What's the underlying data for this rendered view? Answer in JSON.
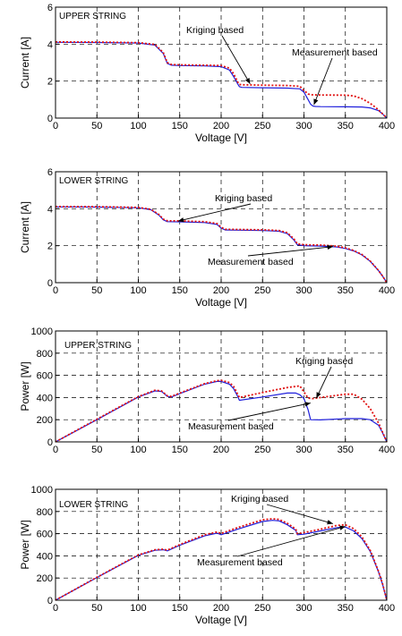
{
  "colors": {
    "measurement": "#1f1fdc",
    "kriging": "#e01010",
    "axis": "#000000",
    "grid": "#000000"
  },
  "chart_data": [
    {
      "type": "line",
      "id": "upper-current",
      "string_label": "UPPER STRING",
      "xlabel": "Voltage [V]",
      "ylabel": "Current [A]",
      "xlim": [
        0,
        400
      ],
      "ylim": [
        0,
        6
      ],
      "xticks": [
        0,
        50,
        100,
        150,
        200,
        250,
        300,
        350,
        400
      ],
      "yticks": [
        0,
        2,
        4,
        6
      ],
      "grid": true,
      "annotations": [
        {
          "text": "Kriging based",
          "series": "kriging",
          "point": [
            235,
            1.85
          ]
        },
        {
          "text": "Measurement based",
          "series": "measurement",
          "point": [
            312,
            0.72
          ]
        }
      ],
      "series": [
        {
          "key": "measurement",
          "style": "solid",
          "x": [
            0,
            50,
            100,
            120,
            130,
            135,
            140,
            150,
            180,
            200,
            210,
            215,
            220,
            222,
            225,
            250,
            280,
            295,
            300,
            305,
            308,
            311,
            314,
            320,
            350,
            370,
            380,
            390,
            395,
            400
          ],
          "y": [
            4.1,
            4.09,
            4.06,
            3.95,
            3.5,
            2.95,
            2.86,
            2.84,
            2.82,
            2.78,
            2.6,
            2.25,
            1.85,
            1.7,
            1.66,
            1.64,
            1.62,
            1.58,
            1.4,
            1.0,
            0.75,
            0.65,
            0.63,
            0.62,
            0.61,
            0.6,
            0.55,
            0.4,
            0.22,
            0.0
          ]
        },
        {
          "key": "kriging",
          "style": "dotted",
          "x": [
            0,
            50,
            100,
            120,
            130,
            135,
            140,
            150,
            180,
            200,
            210,
            215,
            220,
            222,
            225,
            250,
            280,
            295,
            300,
            305,
            310,
            320,
            350,
            360,
            370,
            380,
            390,
            400
          ],
          "y": [
            4.12,
            4.11,
            4.08,
            3.98,
            3.55,
            3.0,
            2.9,
            2.88,
            2.86,
            2.84,
            2.7,
            2.4,
            1.95,
            1.82,
            1.8,
            1.78,
            1.76,
            1.72,
            1.5,
            1.3,
            1.26,
            1.25,
            1.24,
            1.2,
            1.05,
            0.8,
            0.45,
            0.0
          ]
        }
      ]
    },
    {
      "type": "line",
      "id": "lower-current",
      "string_label": "LOWER STRING",
      "xlabel": "Voltage [V]",
      "ylabel": "Current [A]",
      "xlim": [
        0,
        400
      ],
      "ylim": [
        0,
        6
      ],
      "xticks": [
        0,
        50,
        100,
        150,
        200,
        250,
        300,
        350,
        400
      ],
      "yticks": [
        0,
        2,
        4,
        6
      ],
      "grid": true,
      "annotations": [
        {
          "text": "Kriging based",
          "series": "kriging",
          "point": [
            148,
            3.33
          ]
        },
        {
          "text": "Measurement based",
          "series": "measurement",
          "point": [
            335,
            1.95
          ]
        }
      ],
      "series": [
        {
          "key": "measurement",
          "style": "solid",
          "x": [
            0,
            50,
            100,
            115,
            125,
            130,
            135,
            150,
            180,
            195,
            200,
            205,
            220,
            250,
            270,
            280,
            288,
            292,
            300,
            320,
            330,
            340,
            350,
            360,
            370,
            380,
            390,
            395,
            400
          ],
          "y": [
            4.1,
            4.09,
            4.05,
            3.95,
            3.65,
            3.4,
            3.3,
            3.29,
            3.25,
            3.15,
            2.95,
            2.85,
            2.84,
            2.82,
            2.78,
            2.65,
            2.3,
            2.05,
            2.0,
            1.98,
            1.96,
            1.93,
            1.85,
            1.72,
            1.5,
            1.15,
            0.65,
            0.35,
            0.0
          ]
        },
        {
          "key": "kriging",
          "style": "dotted",
          "x": [
            0,
            50,
            100,
            115,
            125,
            130,
            135,
            150,
            180,
            195,
            200,
            205,
            220,
            250,
            270,
            280,
            288,
            292,
            300,
            320,
            330,
            340,
            350,
            360,
            370,
            380,
            390,
            395,
            400
          ],
          "y": [
            4.12,
            4.11,
            4.07,
            3.97,
            3.68,
            3.44,
            3.35,
            3.34,
            3.3,
            3.2,
            3.0,
            2.89,
            2.88,
            2.86,
            2.82,
            2.7,
            2.36,
            2.1,
            2.05,
            2.03,
            2.01,
            1.97,
            1.88,
            1.74,
            1.52,
            1.17,
            0.66,
            0.35,
            0.0
          ]
        }
      ]
    },
    {
      "type": "line",
      "id": "upper-power",
      "string_label": "UPPER STRING",
      "xlabel": "",
      "ylabel": "Power [W]",
      "xlim": [
        0,
        400
      ],
      "ylim": [
        0,
        1000
      ],
      "xticks": [
        0,
        50,
        100,
        150,
        200,
        250,
        300,
        350,
        400
      ],
      "yticks": [
        0,
        200,
        400,
        600,
        800,
        1000
      ],
      "grid": true,
      "annotations": [
        {
          "text": "Kriging based",
          "series": "kriging",
          "point": [
            315,
            395
          ]
        },
        {
          "text": "Measurement based",
          "series": "measurement",
          "point": [
            308,
            350
          ]
        }
      ],
      "series": [
        {
          "key": "measurement",
          "style": "solid",
          "x": [
            0,
            50,
            100,
            120,
            128,
            135,
            140,
            150,
            180,
            195,
            200,
            210,
            215,
            220,
            222,
            250,
            280,
            290,
            295,
            300,
            305,
            308,
            320,
            350,
            370,
            380,
            390,
            395,
            400
          ],
          "y": [
            0,
            200,
            405,
            460,
            455,
            410,
            405,
            435,
            520,
            545,
            545,
            520,
            480,
            410,
            375,
            405,
            440,
            440,
            425,
            390,
            290,
            200,
            198,
            210,
            210,
            200,
            150,
            80,
            0
          ]
        },
        {
          "key": "kriging",
          "style": "dotted",
          "x": [
            0,
            50,
            100,
            120,
            128,
            135,
            140,
            150,
            180,
            195,
            200,
            210,
            215,
            220,
            222,
            250,
            280,
            295,
            300,
            305,
            310,
            320,
            350,
            360,
            370,
            380,
            390,
            400
          ],
          "y": [
            0,
            205,
            408,
            465,
            460,
            415,
            410,
            440,
            525,
            552,
            555,
            535,
            500,
            430,
            400,
            445,
            490,
            505,
            450,
            395,
            390,
            400,
            430,
            430,
            385,
            300,
            170,
            0
          ]
        }
      ]
    },
    {
      "type": "line",
      "id": "lower-power",
      "string_label": "LOWER STRING",
      "xlabel": "Voltage [V]",
      "ylabel": "Power [W]",
      "xlim": [
        0,
        400
      ],
      "ylim": [
        0,
        1000
      ],
      "xticks": [
        0,
        50,
        100,
        150,
        200,
        250,
        300,
        350,
        400
      ],
      "yticks": [
        0,
        200,
        400,
        600,
        800,
        1000
      ],
      "grid": true,
      "annotations": [
        {
          "text": "Kriging based",
          "series": "kriging",
          "point": [
            335,
            690
          ]
        },
        {
          "text": "Measurement based",
          "series": "measurement",
          "point": [
            350,
            665
          ]
        }
      ],
      "series": [
        {
          "key": "measurement",
          "style": "solid",
          "x": [
            0,
            50,
            100,
            120,
            130,
            135,
            150,
            180,
            195,
            200,
            220,
            250,
            262,
            270,
            280,
            290,
            292,
            300,
            320,
            340,
            350,
            360,
            370,
            380,
            390,
            395,
            400
          ],
          "y": [
            0,
            205,
            405,
            450,
            455,
            445,
            495,
            580,
            605,
            590,
            640,
            710,
            720,
            715,
            680,
            630,
            590,
            595,
            625,
            655,
            660,
            625,
            555,
            440,
            255,
            140,
            0
          ]
        },
        {
          "key": "kriging",
          "style": "dotted",
          "x": [
            0,
            50,
            100,
            120,
            130,
            135,
            150,
            180,
            195,
            200,
            220,
            250,
            262,
            270,
            280,
            290,
            292,
            300,
            320,
            340,
            350,
            360,
            370,
            380,
            390,
            395,
            400
          ],
          "y": [
            0,
            207,
            408,
            455,
            460,
            452,
            502,
            590,
            615,
            602,
            655,
            725,
            735,
            728,
            693,
            642,
            600,
            610,
            640,
            675,
            680,
            645,
            570,
            450,
            260,
            145,
            0
          ]
        }
      ]
    }
  ]
}
